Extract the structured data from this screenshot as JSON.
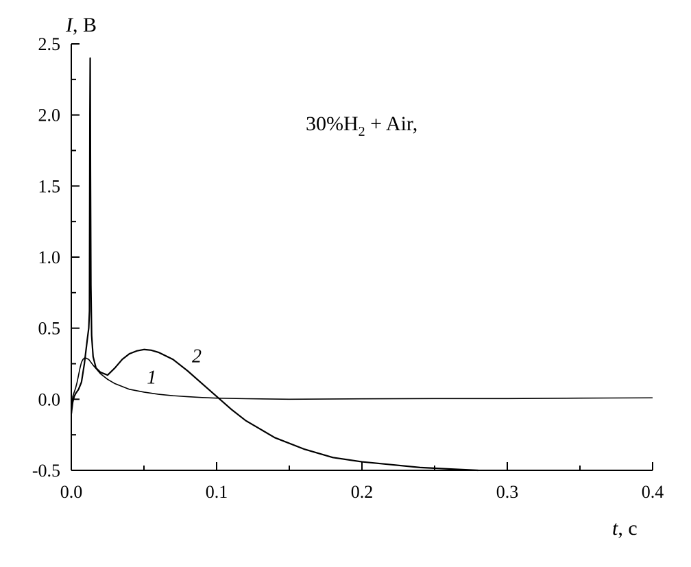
{
  "chart_data": {
    "type": "line",
    "title": "",
    "annotation": {
      "prefix": "30%H",
      "subscript": "2",
      "suffix": " + Air,"
    },
    "xlabel": {
      "var": "t",
      "unit": ", c"
    },
    "ylabel": {
      "var": "I",
      "unit": ", В"
    },
    "xlim": [
      0,
      0.4
    ],
    "ylim": [
      -0.5,
      2.5
    ],
    "x_ticks": [
      0.0,
      0.1,
      0.2,
      0.3,
      0.4
    ],
    "x_tick_labels": [
      "0.0",
      "0.1",
      "0.2",
      "0.3",
      "0.4"
    ],
    "y_ticks": [
      -0.5,
      0.0,
      0.5,
      1.0,
      1.5,
      2.0,
      2.5
    ],
    "y_tick_labels": [
      "-0.5",
      "0.0",
      "0.5",
      "1.0",
      "1.5",
      "2.0",
      "2.5"
    ],
    "grid": false,
    "series": [
      {
        "name": "1",
        "x": [
          0,
          0.001,
          0.002,
          0.003,
          0.004,
          0.005,
          0.006,
          0.007,
          0.008,
          0.009,
          0.01,
          0.012,
          0.015,
          0.02,
          0.025,
          0.03,
          0.04,
          0.05,
          0.06,
          0.07,
          0.08,
          0.09,
          0.1,
          0.12,
          0.15,
          0.2,
          0.25,
          0.3,
          0.35,
          0.4
        ],
        "y": [
          -0.12,
          0.02,
          0.05,
          0.08,
          0.12,
          0.17,
          0.22,
          0.26,
          0.28,
          0.29,
          0.29,
          0.28,
          0.24,
          0.18,
          0.14,
          0.11,
          0.07,
          0.05,
          0.035,
          0.025,
          0.018,
          0.012,
          0.008,
          0.004,
          0.0,
          0.003,
          0.005,
          0.005,
          0.008,
          0.01
        ]
      },
      {
        "name": "2",
        "x": [
          0,
          0.001,
          0.002,
          0.003,
          0.005,
          0.007,
          0.009,
          0.011,
          0.012,
          0.0125,
          0.0128,
          0.013,
          0.0132,
          0.0135,
          0.014,
          0.015,
          0.017,
          0.02,
          0.025,
          0.03,
          0.035,
          0.04,
          0.045,
          0.05,
          0.055,
          0.06,
          0.07,
          0.08,
          0.09,
          0.1,
          0.11,
          0.12,
          0.14,
          0.16,
          0.18,
          0.2,
          0.22,
          0.24,
          0.26,
          0.28
        ],
        "y": [
          -0.1,
          -0.02,
          0.02,
          0.04,
          0.07,
          0.12,
          0.25,
          0.42,
          0.5,
          0.62,
          2.0,
          2.4,
          1.6,
          0.8,
          0.45,
          0.3,
          0.22,
          0.19,
          0.17,
          0.22,
          0.28,
          0.32,
          0.34,
          0.35,
          0.345,
          0.33,
          0.28,
          0.2,
          0.11,
          0.02,
          -0.07,
          -0.15,
          -0.27,
          -0.35,
          -0.41,
          -0.44,
          -0.46,
          -0.48,
          -0.49,
          -0.5
        ]
      }
    ],
    "curve_labels": [
      {
        "text": "1",
        "x": 0.052,
        "y": 0.11
      },
      {
        "text": "2",
        "x": 0.083,
        "y": 0.26
      }
    ]
  }
}
